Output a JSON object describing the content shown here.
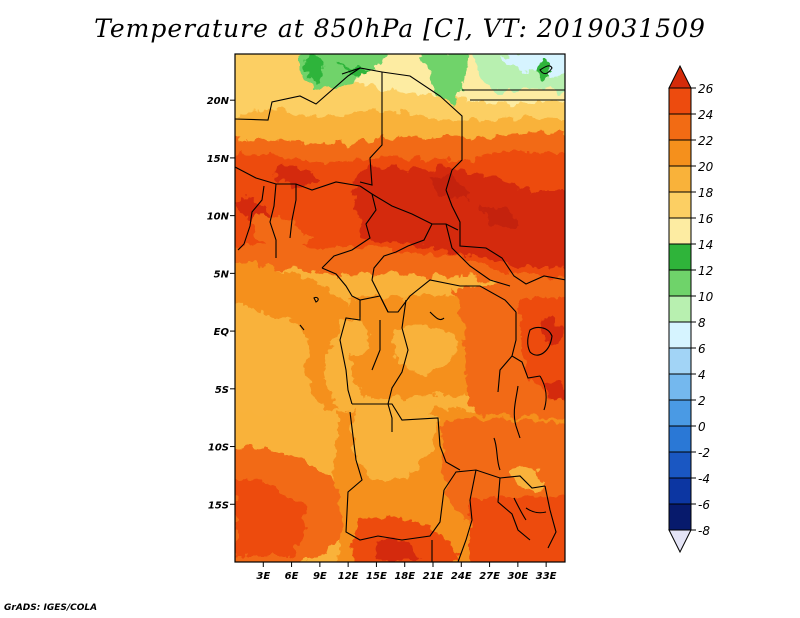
{
  "title": "Temperature at 850hPa [C], VT: 2019031509",
  "credit": "GrADS: IGES/COLA",
  "map": {
    "lon_range": [
      0,
      35
    ],
    "lat_range": [
      -20,
      24
    ],
    "lon_ticks": [
      {
        "value": 3,
        "label": "3E"
      },
      {
        "value": 6,
        "label": "6E"
      },
      {
        "value": 9,
        "label": "9E"
      },
      {
        "value": 12,
        "label": "12E"
      },
      {
        "value": 15,
        "label": "15E"
      },
      {
        "value": 18,
        "label": "18E"
      },
      {
        "value": 21,
        "label": "21E"
      },
      {
        "value": 24,
        "label": "24E"
      },
      {
        "value": 27,
        "label": "27E"
      },
      {
        "value": 30,
        "label": "30E"
      },
      {
        "value": 33,
        "label": "33E"
      }
    ],
    "lat_ticks": [
      {
        "value": 20,
        "label": "20N"
      },
      {
        "value": 15,
        "label": "15N"
      },
      {
        "value": 10,
        "label": "10N"
      },
      {
        "value": 5,
        "label": "5N"
      },
      {
        "value": 0,
        "label": "EQ"
      },
      {
        "value": -5,
        "label": "5S"
      },
      {
        "value": -10,
        "label": "10S"
      },
      {
        "value": -15,
        "label": "15S"
      }
    ]
  },
  "colorbar": {
    "levels": [
      26,
      24,
      22,
      20,
      18,
      16,
      14,
      12,
      10,
      8,
      6,
      4,
      2,
      0,
      -2,
      -4,
      -6,
      -8
    ],
    "colors": [
      "#d42b0a",
      "#ed4b0e",
      "#f26b14",
      "#f5901c",
      "#f9b23a",
      "#fccf63",
      "#fdeca2",
      "#2fb43a",
      "#6fd36a",
      "#b8f0b0",
      "#d6f4ff",
      "#a2d4f6",
      "#74b8ee",
      "#4a9ae4",
      "#2a78d6",
      "#1a57c2",
      "#0c36a2",
      "#071a6c",
      "#e4e4f6"
    ]
  }
}
